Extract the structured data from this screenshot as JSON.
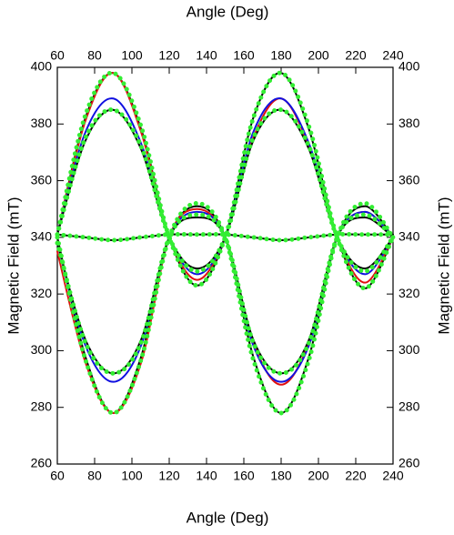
{
  "chart_data": {
    "type": "line",
    "x_label": "Angle (Deg)",
    "y_label": "Magnetic Field (mT)",
    "x": [
      60,
      75,
      90,
      105,
      120,
      135,
      150,
      165,
      180,
      195,
      210,
      225,
      240
    ],
    "xlim": [
      60,
      240
    ],
    "xticks": [
      60,
      80,
      100,
      120,
      140,
      160,
      180,
      200,
      220,
      240
    ],
    "ylim": [
      260,
      400
    ],
    "yticks": [
      260,
      280,
      300,
      320,
      340,
      360,
      380,
      400
    ],
    "mirror_axes": true,
    "series": [
      {
        "color": "#000000",
        "marker": "line",
        "values": [
          341,
          382,
          398,
          378,
          340,
          323,
          340,
          382,
          398,
          378,
          340,
          322,
          340
        ]
      },
      {
        "color": "#000000",
        "marker": "line",
        "values": [
          340,
          298,
          278,
          298,
          340,
          351,
          340,
          298,
          278,
          298,
          340,
          351,
          340
        ]
      },
      {
        "color": "#e01010",
        "marker": "line",
        "values": [
          341,
          381,
          398,
          377,
          340,
          325,
          340,
          375,
          389,
          372,
          340,
          324,
          340
        ]
      },
      {
        "color": "#e01010",
        "marker": "line",
        "values": [
          335,
          296,
          278,
          296,
          340,
          350,
          340,
          303,
          288,
          303,
          340,
          349,
          340
        ]
      },
      {
        "color": "#1010e0",
        "marker": "line",
        "values": [
          341,
          377,
          389,
          373,
          340,
          327,
          340,
          377,
          389,
          373,
          340,
          327,
          340
        ]
      },
      {
        "color": "#1010e0",
        "marker": "line",
        "values": [
          338,
          302,
          289,
          302,
          340,
          349,
          340,
          302,
          289,
          302,
          340,
          349,
          340
        ]
      },
      {
        "color": "#000000",
        "marker": "line",
        "values": [
          341,
          374,
          385,
          371,
          340,
          329,
          340,
          374,
          385,
          371,
          340,
          329,
          340
        ]
      },
      {
        "color": "#000000",
        "marker": "line",
        "values": [
          338,
          304,
          292,
          304,
          340,
          347,
          340,
          304,
          292,
          304,
          340,
          347,
          340
        ]
      },
      {
        "color": "#000000",
        "marker": "line",
        "values": [
          341,
          340,
          339,
          340,
          341,
          341,
          341,
          340,
          339,
          340,
          341,
          341,
          341
        ]
      },
      {
        "color": "#33ee33",
        "marker": "dots",
        "values": [
          341,
          383,
          398,
          379,
          340,
          323,
          340,
          382,
          398,
          379,
          340,
          322,
          340
        ]
      },
      {
        "color": "#33ee33",
        "marker": "dots",
        "values": [
          340,
          297,
          278,
          297,
          340,
          352,
          340,
          297,
          278,
          297,
          340,
          352,
          340
        ]
      },
      {
        "color": "#33ee33",
        "marker": "dots",
        "values": [
          341,
          375,
          385,
          372,
          340,
          328,
          340,
          375,
          385,
          372,
          340,
          328,
          340
        ]
      },
      {
        "color": "#33ee33",
        "marker": "dots",
        "values": [
          338,
          303,
          292,
          303,
          340,
          348,
          340,
          303,
          292,
          303,
          340,
          348,
          340
        ]
      },
      {
        "color": "#33ee33",
        "marker": "dots",
        "values": [
          341,
          340,
          339,
          340,
          341,
          341,
          341,
          340,
          339,
          340,
          341,
          341,
          341
        ]
      }
    ]
  }
}
